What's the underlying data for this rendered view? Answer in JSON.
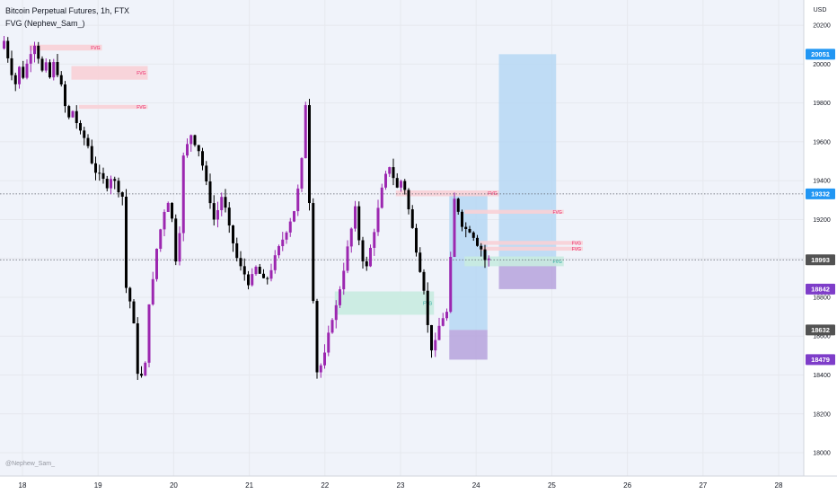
{
  "header": {
    "symbol_line": "Bitcoin Perpetual Futures, 1h, FTX",
    "indicator_line": "FVG (Nephew_Sam_)"
  },
  "watermark": "@Nephew_Sam_",
  "currency_label": "USD",
  "colors": {
    "background": "#f0f3fa",
    "grid": "#e6e8ee",
    "candle_up": "#9c27b0",
    "candle_down": "#000000",
    "bull_fvg": "#c8ebe0",
    "bear_fvg": "#f8d0d6",
    "fvg_text_bull": "#26a69a",
    "fvg_text_bear": "#e91e63",
    "target_zone": "#b6d7f3",
    "stop_zone": "#b39ddb",
    "price_tag_blue": "#2196f3",
    "price_tag_dark": "#525252",
    "price_tag_purple": "#7e3dc9"
  },
  "chart_data": {
    "type": "candlestick",
    "x_axis": {
      "labels": [
        "18",
        "19",
        "20",
        "21",
        "22",
        "23",
        "24",
        "25",
        "26",
        "27",
        "28"
      ]
    },
    "y_axis": {
      "range": [
        17880,
        20330
      ],
      "ticks": [
        18000,
        18200,
        18400,
        18600,
        18800,
        19000,
        19200,
        19400,
        19600,
        19800,
        20000,
        20200
      ],
      "tick_labels": [
        "18000",
        "18200",
        "18400",
        "18600",
        "18800",
        "19000",
        "19200",
        "19400",
        "19600",
        "19800",
        "20000",
        "20200"
      ],
      "position": "right"
    },
    "anchor_points": [
      [
        0,
        20080
      ],
      [
        1,
        20120
      ],
      [
        2,
        20040
      ],
      [
        3,
        19960
      ],
      [
        4,
        19900
      ],
      [
        5,
        19980
      ],
      [
        6,
        19940
      ],
      [
        7,
        20000
      ],
      [
        8,
        20070
      ],
      [
        9,
        20110
      ],
      [
        10,
        20040
      ],
      [
        11,
        19960
      ],
      [
        12,
        19990
      ],
      [
        13,
        19930
      ],
      [
        14,
        20000
      ],
      [
        15,
        19960
      ],
      [
        16,
        19880
      ],
      [
        17,
        19780
      ],
      [
        18,
        19720
      ],
      [
        19,
        19760
      ],
      [
        20,
        19700
      ],
      [
        21,
        19640
      ],
      [
        22,
        19620
      ],
      [
        23,
        19580
      ],
      [
        24,
        19500
      ],
      [
        25,
        19450
      ],
      [
        26,
        19420
      ],
      [
        27,
        19400
      ],
      [
        28,
        19380
      ],
      [
        29,
        19420
      ],
      [
        30,
        19390
      ],
      [
        31,
        19360
      ],
      [
        32,
        19320
      ],
      [
        33,
        18850
      ],
      [
        34,
        18780
      ],
      [
        35,
        18650
      ],
      [
        36,
        18420
      ],
      [
        37,
        18390
      ],
      [
        38,
        18450
      ],
      [
        39,
        18780
      ],
      [
        40,
        18880
      ],
      [
        41,
        19050
      ],
      [
        42,
        19150
      ],
      [
        43,
        19250
      ],
      [
        44,
        19300
      ],
      [
        45,
        19200
      ],
      [
        46,
        19000
      ],
      [
        47,
        19150
      ],
      [
        48,
        19520
      ],
      [
        49,
        19580
      ],
      [
        50,
        19640
      ],
      [
        51,
        19600
      ],
      [
        52,
        19560
      ],
      [
        53,
        19480
      ],
      [
        54,
        19380
      ],
      [
        55,
        19300
      ],
      [
        56,
        19200
      ],
      [
        57,
        19250
      ],
      [
        58,
        19320
      ],
      [
        59,
        19250
      ],
      [
        60,
        19150
      ],
      [
        61,
        19080
      ],
      [
        62,
        19000
      ],
      [
        63,
        18950
      ],
      [
        64,
        18920
      ],
      [
        65,
        18880
      ],
      [
        66,
        18900
      ],
      [
        67,
        18950
      ],
      [
        68,
        18920
      ],
      [
        69,
        18880
      ],
      [
        70,
        18900
      ],
      [
        71,
        18950
      ],
      [
        72,
        19000
      ],
      [
        73,
        19050
      ],
      [
        74,
        19100
      ],
      [
        75,
        19150
      ],
      [
        76,
        19200
      ],
      [
        77,
        19250
      ],
      [
        78,
        19350
      ],
      [
        79,
        19500
      ],
      [
        80,
        19800
      ],
      [
        81,
        19300
      ],
      [
        82,
        18800
      ],
      [
        83,
        18420
      ],
      [
        84,
        18450
      ],
      [
        85,
        18500
      ],
      [
        86,
        18600
      ],
      [
        87,
        18700
      ],
      [
        88,
        18750
      ],
      [
        89,
        18850
      ],
      [
        90,
        18950
      ],
      [
        91,
        19050
      ],
      [
        92,
        19150
      ],
      [
        93,
        19250
      ],
      [
        94,
        19100
      ],
      [
        95,
        19000
      ],
      [
        96,
        18950
      ],
      [
        97,
        19050
      ],
      [
        98,
        19150
      ],
      [
        99,
        19250
      ],
      [
        100,
        19350
      ],
      [
        101,
        19420
      ],
      [
        102,
        19480
      ],
      [
        103,
        19420
      ],
      [
        104,
        19360
      ],
      [
        105,
        19400
      ],
      [
        106,
        19360
      ],
      [
        107,
        19250
      ],
      [
        108,
        19150
      ],
      [
        109,
        19050
      ],
      [
        110,
        18950
      ],
      [
        111,
        18850
      ],
      [
        112,
        18650
      ],
      [
        113,
        18540
      ],
      [
        114,
        18560
      ],
      [
        115,
        18650
      ],
      [
        116,
        18700
      ],
      [
        117,
        18720
      ],
      [
        118,
        18990
      ],
      [
        119,
        19300
      ],
      [
        120,
        19250
      ],
      [
        121,
        19180
      ],
      [
        122,
        19150
      ],
      [
        123,
        19150
      ],
      [
        124,
        19120
      ],
      [
        125,
        19080
      ],
      [
        126,
        19050
      ],
      [
        127,
        18993
      ]
    ],
    "fvg_zones": [
      {
        "kind": "bear",
        "label": "FVG",
        "from": 7,
        "to": 26,
        "low": 20070,
        "high": 20100
      },
      {
        "kind": "bear",
        "label": "FVG",
        "from": 18,
        "to": 38,
        "low": 19920,
        "high": 19990
      },
      {
        "kind": "bear",
        "label": "FVG",
        "from": 20,
        "to": 38,
        "low": 19770,
        "high": 19790
      },
      {
        "kind": "bull",
        "label": "FVG",
        "from": 87,
        "to": 113,
        "low": 18710,
        "high": 18830
      },
      {
        "kind": "bear",
        "label": "FVG",
        "from": 103,
        "to": 130,
        "low": 19320,
        "high": 19350
      },
      {
        "kind": "bear",
        "label": "FVG",
        "from": 121,
        "to": 147,
        "low": 19230,
        "high": 19250
      },
      {
        "kind": "bear",
        "label": "FVG",
        "from": 125,
        "to": 152,
        "low": 19070,
        "high": 19090
      },
      {
        "kind": "bear",
        "label": "FVG",
        "from": 125,
        "to": 152,
        "low": 19040,
        "high": 19060
      },
      {
        "kind": "bull",
        "label": "FVG",
        "from": 121,
        "to": 147,
        "low": 18960,
        "high": 19010
      }
    ],
    "positions": [
      {
        "kind": "long",
        "from": 117,
        "to": 127,
        "entry": 18632,
        "target": 19332,
        "stop": 18479
      },
      {
        "kind": "long",
        "from": 130,
        "to": 145,
        "entry": 18993,
        "target": 20051,
        "stop": 18842
      }
    ],
    "reference_lines": [
      19332,
      18993
    ],
    "price_tags": [
      {
        "value": "20051",
        "style": "blue"
      },
      {
        "value": "19332",
        "style": "blue"
      },
      {
        "value": "18993",
        "style": "dark"
      },
      {
        "value": "18842",
        "style": "purple"
      },
      {
        "value": "18632",
        "style": "dark"
      },
      {
        "value": "18479",
        "style": "purple"
      }
    ]
  }
}
